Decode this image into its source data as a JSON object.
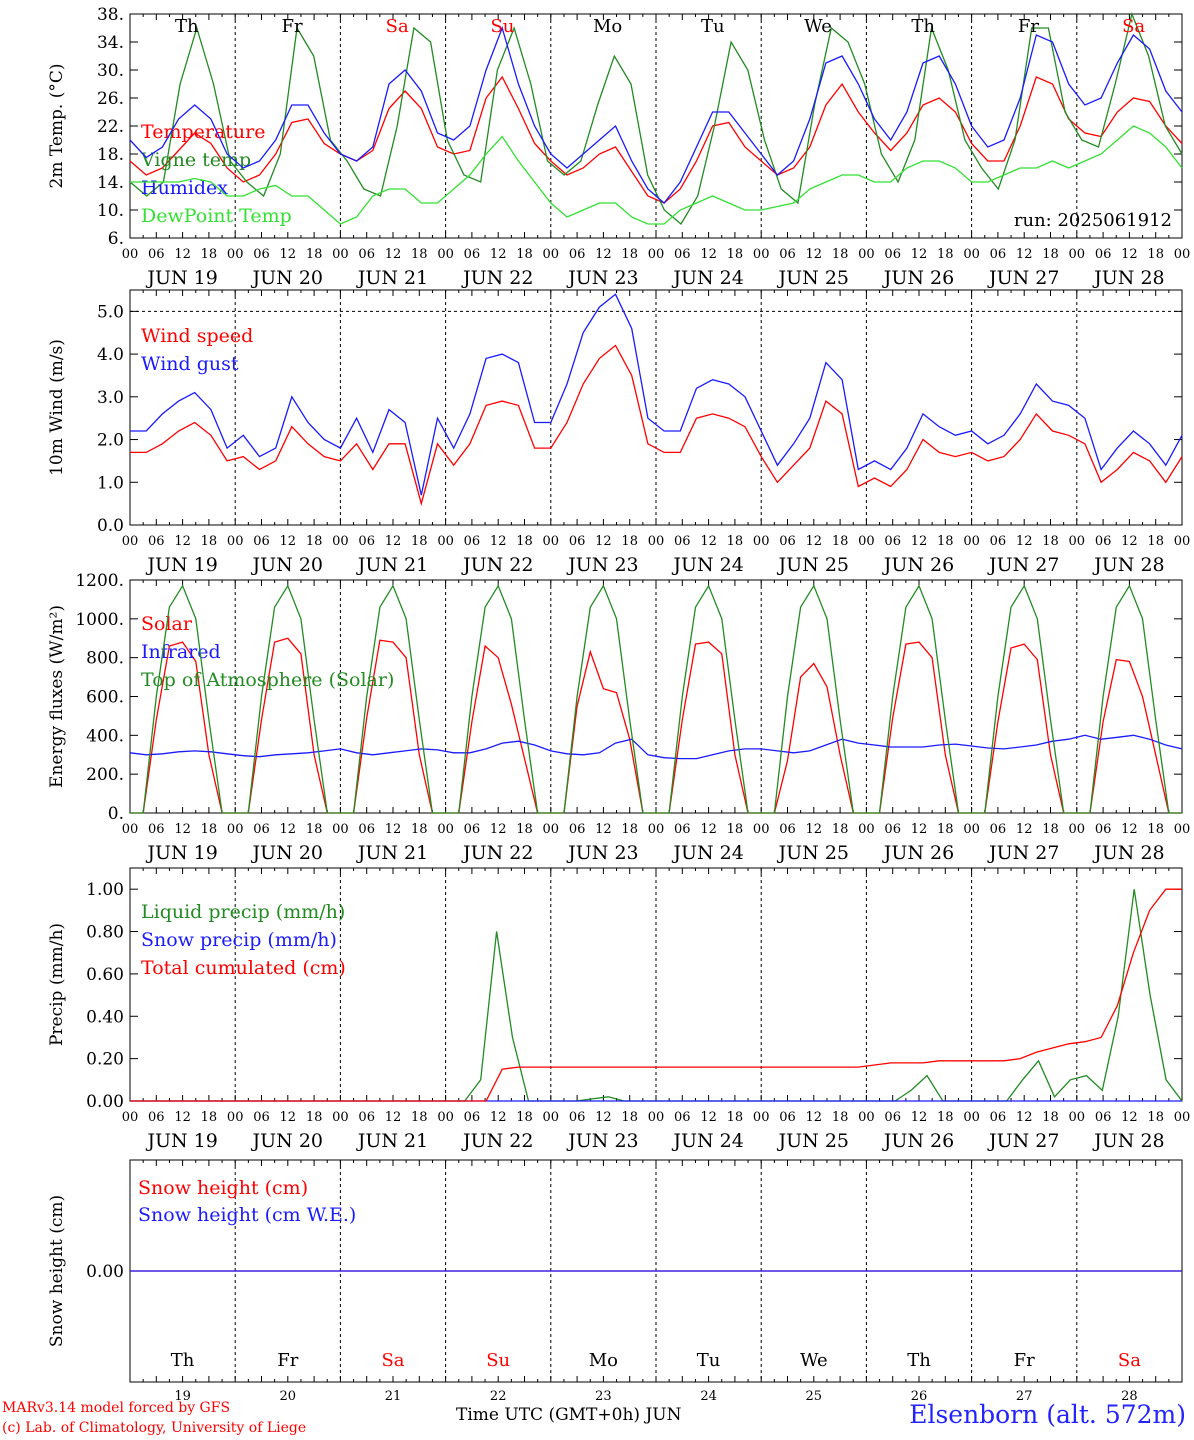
{
  "colors": {
    "red": "#ff0000",
    "green": "#228b22",
    "blue": "#1a1aff",
    "lightgreen": "#33e033",
    "weekend": "#ff0000",
    "text": "#000000"
  },
  "days": {
    "weekday_labels": [
      "Th",
      "Fr",
      "Sa",
      "Su",
      "Mo",
      "Tu",
      "We",
      "Th",
      "Fr",
      "Sa"
    ],
    "weekend_flags": [
      false,
      false,
      true,
      true,
      false,
      false,
      false,
      false,
      false,
      true
    ],
    "date_labels": [
      "JUN 19",
      "JUN 20",
      "JUN 21",
      "JUN 22",
      "JUN 23",
      "JUN 24",
      "JUN 25",
      "JUN 26",
      "JUN 27",
      "JUN 28"
    ],
    "bottom_day_numbers": [
      "19",
      "20",
      "21",
      "22",
      "23",
      "24",
      "25",
      "26",
      "27",
      "28"
    ],
    "hour_labels": [
      "00",
      "06",
      "12",
      "18"
    ],
    "final_hour_label": "00"
  },
  "footer": {
    "model_line": "MARv3.14 model forced by GFS",
    "credit_line": "(c) Lab. of Climatology, University of Liege",
    "time_label": "Time UTC (GMT+0h) JUN",
    "station": "Elsenborn (alt. 572m)"
  },
  "chart_data": [
    {
      "id": "temp",
      "type": "line",
      "ylabel": "2m Temp. (°C)",
      "ylim": [
        6,
        38
      ],
      "yticks": [
        "6.",
        "10.",
        "14.",
        "18.",
        "22.",
        "26.",
        "30.",
        "34.",
        "38."
      ],
      "annotation": "run: 2025061912",
      "series": [
        {
          "name": "Temperature",
          "color": "red",
          "values": [
            17,
            15,
            16,
            18.5,
            21,
            19.5,
            16,
            14,
            15,
            18,
            22.5,
            23,
            19.5,
            18,
            17,
            18.5,
            24.5,
            27,
            24.5,
            19,
            18,
            18.5,
            26,
            29,
            24.5,
            19.5,
            17,
            15,
            16,
            18,
            19,
            15.5,
            12,
            11,
            13,
            17,
            22,
            22.5,
            19,
            17,
            15,
            16,
            19,
            25,
            28,
            24,
            21,
            18.5,
            21,
            25,
            26,
            24,
            19.5,
            17,
            17,
            22,
            29,
            28,
            23,
            21,
            20.5,
            24,
            26,
            25.5,
            22,
            19.5
          ]
        },
        {
          "name": "Vigne temp",
          "color": "green",
          "values": [
            14,
            12,
            14,
            28,
            36,
            28,
            17,
            14,
            12,
            18,
            36,
            32,
            20,
            17,
            13,
            12,
            22,
            36,
            34,
            20,
            15,
            14,
            30,
            36,
            28,
            17,
            15,
            17,
            25,
            32,
            28,
            15,
            10,
            8,
            12,
            22,
            34,
            30,
            20,
            13,
            11,
            25,
            36,
            34,
            28,
            18,
            14,
            20,
            36,
            30,
            20,
            16,
            13,
            20,
            36,
            36,
            24,
            20,
            19,
            28,
            38,
            32,
            22,
            18
          ]
        },
        {
          "name": "Humidex",
          "color": "blue",
          "values": [
            20,
            17.5,
            19,
            23,
            25,
            23,
            18,
            16,
            17,
            20,
            25,
            25,
            21,
            18,
            17,
            19,
            28,
            30,
            27,
            21,
            20,
            22,
            30,
            36,
            28,
            22,
            18,
            16,
            18,
            20,
            22,
            17,
            13,
            11,
            14,
            19,
            24,
            24,
            21,
            18,
            15,
            17,
            23,
            31,
            32,
            28,
            23,
            20,
            24,
            31,
            32,
            28,
            22,
            19,
            20,
            26,
            35,
            34,
            28,
            25,
            26,
            31,
            35,
            33,
            27,
            24
          ]
        },
        {
          "name": "DewPoint Temp",
          "color": "lightgreen",
          "values": [
            14,
            14,
            14,
            14,
            14.5,
            14,
            12,
            12,
            13,
            13.5,
            12,
            12,
            10,
            8,
            9,
            12,
            13,
            13,
            11,
            11,
            13,
            15,
            18,
            20.5,
            17,
            14,
            11,
            9,
            10,
            11,
            11,
            9,
            8,
            8,
            10,
            11,
            12,
            11,
            10,
            10,
            10.5,
            11,
            13,
            14,
            15,
            15,
            14,
            14,
            16,
            17,
            17,
            16,
            14,
            14,
            15,
            16,
            16,
            17,
            16,
            17,
            18,
            20,
            22,
            21,
            19,
            16
          ]
        }
      ]
    },
    {
      "id": "wind",
      "type": "line",
      "ylabel": "10m Wind (m/s)",
      "ylim": [
        0,
        5.5
      ],
      "yticks": [
        "0.0",
        "1.0",
        "2.0",
        "3.0",
        "4.0",
        "5.0"
      ],
      "series": [
        {
          "name": "Wind speed",
          "color": "red",
          "values": [
            1.7,
            1.7,
            1.9,
            2.2,
            2.4,
            2.1,
            1.5,
            1.6,
            1.3,
            1.5,
            2.3,
            1.9,
            1.6,
            1.5,
            1.9,
            1.3,
            1.9,
            1.9,
            0.5,
            1.9,
            1.4,
            1.9,
            2.8,
            2.9,
            2.8,
            1.8,
            1.8,
            2.4,
            3.3,
            3.9,
            4.2,
            3.5,
            1.9,
            1.7,
            1.7,
            2.5,
            2.6,
            2.5,
            2.3,
            1.6,
            1.0,
            1.4,
            1.8,
            2.9,
            2.6,
            0.9,
            1.1,
            0.9,
            1.3,
            2.0,
            1.7,
            1.6,
            1.7,
            1.5,
            1.6,
            2.0,
            2.6,
            2.2,
            2.1,
            1.9,
            1.0,
            1.3,
            1.7,
            1.5,
            1.0,
            1.6
          ]
        },
        {
          "name": "Wind gust",
          "color": "blue",
          "values": [
            2.2,
            2.2,
            2.6,
            2.9,
            3.1,
            2.7,
            1.8,
            2.1,
            1.6,
            1.8,
            3.0,
            2.4,
            2.0,
            1.8,
            2.5,
            1.7,
            2.7,
            2.4,
            0.7,
            2.5,
            1.8,
            2.6,
            3.9,
            4.0,
            3.8,
            2.4,
            2.4,
            3.3,
            4.5,
            5.1,
            5.4,
            4.6,
            2.5,
            2.2,
            2.2,
            3.2,
            3.4,
            3.3,
            3.0,
            2.2,
            1.4,
            1.9,
            2.5,
            3.8,
            3.4,
            1.3,
            1.5,
            1.3,
            1.8,
            2.6,
            2.3,
            2.1,
            2.2,
            1.9,
            2.1,
            2.6,
            3.3,
            2.9,
            2.8,
            2.5,
            1.3,
            1.8,
            2.2,
            1.9,
            1.4,
            2.1
          ]
        }
      ]
    },
    {
      "id": "energy",
      "type": "line",
      "ylabel": "Energy fluxes (W/m²)",
      "ylim": [
        0,
        1200
      ],
      "yticks": [
        "0.",
        "200.",
        "400.",
        "600.",
        "800.",
        "1000.",
        "1200."
      ],
      "series": [
        {
          "name": "Solar",
          "color": "red",
          "values": [
            0,
            0,
            480,
            860,
            880,
            780,
            300,
            0,
            0,
            0,
            480,
            880,
            900,
            820,
            300,
            0,
            0,
            0,
            490,
            890,
            880,
            800,
            300,
            0,
            0,
            0,
            470,
            860,
            800,
            560,
            280,
            0,
            0,
            0,
            550,
            830,
            640,
            620,
            380,
            0,
            0,
            0,
            480,
            870,
            880,
            820,
            300,
            0,
            0,
            0,
            270,
            700,
            770,
            650,
            300,
            0,
            0,
            0,
            490,
            870,
            880,
            800,
            300,
            0,
            0,
            0,
            470,
            850,
            870,
            790,
            300,
            0,
            0,
            0,
            470,
            790,
            780,
            600,
            300,
            0,
            0
          ]
        },
        {
          "name": "Infrared",
          "color": "blue",
          "values": [
            310,
            300,
            305,
            315,
            320,
            315,
            305,
            295,
            290,
            300,
            305,
            310,
            320,
            330,
            310,
            300,
            310,
            320,
            330,
            325,
            310,
            310,
            330,
            360,
            370,
            350,
            320,
            305,
            300,
            310,
            360,
            380,
            300,
            285,
            280,
            280,
            300,
            320,
            330,
            330,
            320,
            310,
            320,
            350,
            380,
            360,
            350,
            340,
            340,
            340,
            350,
            355,
            345,
            335,
            330,
            340,
            350,
            370,
            380,
            400,
            380,
            390,
            400,
            380,
            350,
            330
          ]
        },
        {
          "name": "Top of Atmosphere (Solar)",
          "color": "green",
          "values": [
            0,
            0,
            600,
            1060,
            1170,
            1000,
            480,
            0,
            0,
            0,
            600,
            1060,
            1170,
            1000,
            480,
            0,
            0,
            0,
            600,
            1060,
            1170,
            1000,
            480,
            0,
            0,
            0,
            600,
            1060,
            1170,
            1000,
            480,
            0,
            0,
            0,
            600,
            1060,
            1170,
            1000,
            480,
            0,
            0,
            0,
            600,
            1060,
            1170,
            1000,
            480,
            0,
            0,
            0,
            600,
            1060,
            1170,
            1000,
            480,
            0,
            0,
            0,
            600,
            1060,
            1170,
            1000,
            480,
            0,
            0,
            0,
            600,
            1060,
            1170,
            1000,
            480,
            0,
            0,
            0,
            600,
            1060,
            1170,
            1000,
            480,
            0,
            0
          ]
        }
      ]
    },
    {
      "id": "precip",
      "type": "line",
      "ylabel": "Precip (mm/h)",
      "ylim": [
        0,
        1.1
      ],
      "yticks": [
        "0.00",
        "0.20",
        "0.40",
        "0.60",
        "0.80",
        "1.00"
      ],
      "series": [
        {
          "name": "Liquid precip (mm/h)",
          "color": "green",
          "values": [
            0,
            0,
            0,
            0,
            0,
            0,
            0,
            0,
            0,
            0,
            0,
            0,
            0,
            0,
            0,
            0,
            0,
            0,
            0,
            0,
            0,
            0,
            0.1,
            0.8,
            0.3,
            0,
            0,
            0,
            0,
            0.01,
            0.02,
            0,
            0,
            0,
            0,
            0,
            0,
            0,
            0,
            0,
            0,
            0,
            0,
            0,
            0,
            0,
            0,
            0,
            0,
            0.05,
            0.12,
            0,
            0,
            0,
            0,
            0,
            0.1,
            0.19,
            0.02,
            0.1,
            0.12,
            0.05,
            0.4,
            1.0,
            0.5,
            0.1,
            0
          ]
        },
        {
          "name": "Snow precip (mm/h)",
          "color": "blue",
          "values": [
            0,
            0,
            0,
            0,
            0,
            0,
            0,
            0,
            0,
            0,
            0,
            0,
            0,
            0,
            0,
            0,
            0,
            0,
            0,
            0,
            0,
            0,
            0,
            0,
            0,
            0,
            0,
            0,
            0,
            0,
            0,
            0,
            0,
            0,
            0,
            0,
            0,
            0,
            0,
            0,
            0,
            0,
            0,
            0,
            0,
            0,
            0,
            0,
            0,
            0,
            0,
            0,
            0,
            0,
            0,
            0,
            0,
            0,
            0,
            0,
            0,
            0,
            0,
            0,
            0,
            0
          ]
        },
        {
          "name": "Total cumulated (cm)",
          "color": "red",
          "values": [
            0,
            0,
            0,
            0,
            0,
            0,
            0,
            0,
            0,
            0,
            0,
            0,
            0,
            0,
            0,
            0,
            0,
            0,
            0,
            0,
            0,
            0,
            0,
            0.15,
            0.16,
            0.16,
            0.16,
            0.16,
            0.16,
            0.16,
            0.16,
            0.16,
            0.16,
            0.16,
            0.16,
            0.16,
            0.16,
            0.16,
            0.16,
            0.16,
            0.16,
            0.16,
            0.16,
            0.16,
            0.16,
            0.16,
            0.17,
            0.18,
            0.18,
            0.18,
            0.19,
            0.19,
            0.19,
            0.19,
            0.19,
            0.2,
            0.23,
            0.25,
            0.27,
            0.28,
            0.3,
            0.45,
            0.7,
            0.9,
            1.0,
            1.0
          ]
        }
      ]
    },
    {
      "id": "snow",
      "type": "line",
      "ylabel": "Snow height (cm)",
      "ylim": [
        -1,
        1
      ],
      "yticks": [
        "0.00"
      ],
      "series": [
        {
          "name": "Snow height (cm)",
          "color": "red",
          "values": [
            0,
            0
          ]
        },
        {
          "name": "Snow height (cm W.E.)",
          "color": "blue",
          "values": [
            0,
            0
          ]
        }
      ]
    }
  ]
}
